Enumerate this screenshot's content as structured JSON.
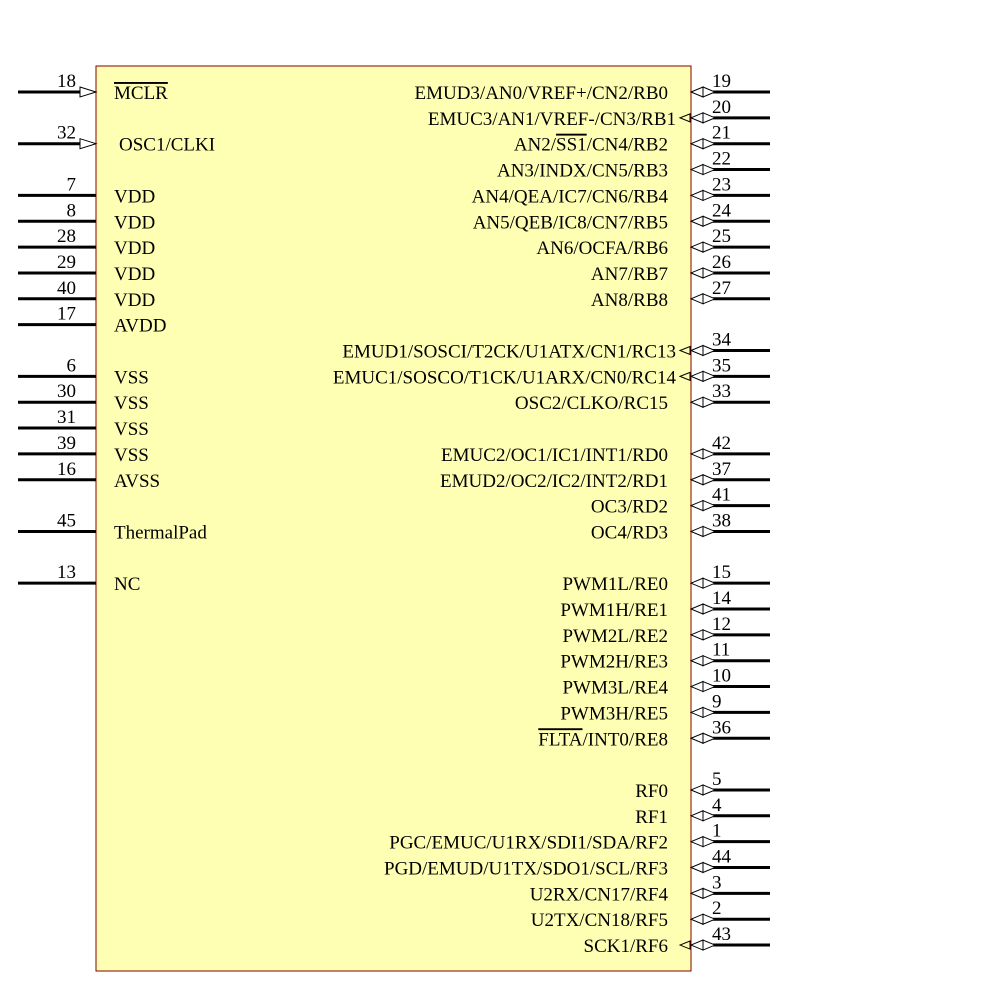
{
  "colors": {
    "body_fill": "#ffffb4",
    "body_border": "#800000",
    "pin": "#000000"
  },
  "left_pins": [
    {
      "row": 0,
      "num": "18",
      "pre": "",
      "over": "MCLR",
      "post": "",
      "type": "input"
    },
    {
      "row": 2,
      "num": "32",
      "pre": "OSC1/CLKI",
      "over": "",
      "post": "",
      "type": "input"
    },
    {
      "row": 4,
      "num": "7",
      "pre": "VDD",
      "over": "",
      "post": "",
      "type": "power"
    },
    {
      "row": 5,
      "num": "8",
      "pre": "VDD",
      "over": "",
      "post": "",
      "type": "power"
    },
    {
      "row": 6,
      "num": "28",
      "pre": "VDD",
      "over": "",
      "post": "",
      "type": "power"
    },
    {
      "row": 7,
      "num": "29",
      "pre": "VDD",
      "over": "",
      "post": "",
      "type": "power"
    },
    {
      "row": 8,
      "num": "40",
      "pre": "VDD",
      "over": "",
      "post": "",
      "type": "power"
    },
    {
      "row": 9,
      "num": "17",
      "pre": "AVDD",
      "over": "",
      "post": "",
      "type": "power"
    },
    {
      "row": 11,
      "num": "6",
      "pre": "VSS",
      "over": "",
      "post": "",
      "type": "power"
    },
    {
      "row": 12,
      "num": "30",
      "pre": "VSS",
      "over": "",
      "post": "",
      "type": "power"
    },
    {
      "row": 13,
      "num": "31",
      "pre": "VSS",
      "over": "",
      "post": "",
      "type": "power"
    },
    {
      "row": 14,
      "num": "39",
      "pre": "VSS",
      "over": "",
      "post": "",
      "type": "power"
    },
    {
      "row": 15,
      "num": "16",
      "pre": "AVSS",
      "over": "",
      "post": "",
      "type": "power"
    },
    {
      "row": 17,
      "num": "45",
      "pre": "ThermalPad",
      "over": "",
      "post": "",
      "type": "power"
    },
    {
      "row": 19,
      "num": "13",
      "pre": "NC",
      "over": "",
      "post": "",
      "type": "power"
    }
  ],
  "right_pins": [
    {
      "row": 0,
      "num": "19",
      "pre": "EMUD3/AN0/VREF+/CN2/RB0",
      "over": "",
      "post": "",
      "out": false
    },
    {
      "row": 1,
      "num": "20",
      "pre": "EMUC3/AN1/VREF-/CN3/RB1",
      "over": "",
      "post": "",
      "out": true
    },
    {
      "row": 2,
      "num": "21",
      "pre": "AN2/",
      "over": "SS1",
      "post": "/CN4/RB2",
      "out": false
    },
    {
      "row": 3,
      "num": "22",
      "pre": "AN3/INDX/CN5/RB3",
      "over": "",
      "post": "",
      "out": false
    },
    {
      "row": 4,
      "num": "23",
      "pre": "AN4/QEA/IC7/CN6/RB4",
      "over": "",
      "post": "",
      "out": false
    },
    {
      "row": 5,
      "num": "24",
      "pre": "AN5/QEB/IC8/CN7/RB5",
      "over": "",
      "post": "",
      "out": false
    },
    {
      "row": 6,
      "num": "25",
      "pre": "AN6/OCFA/RB6",
      "over": "",
      "post": "",
      "out": false
    },
    {
      "row": 7,
      "num": "26",
      "pre": "AN7/RB7",
      "over": "",
      "post": "",
      "out": false
    },
    {
      "row": 8,
      "num": "27",
      "pre": "AN8/RB8",
      "over": "",
      "post": "",
      "out": false
    },
    {
      "row": 10,
      "num": "34",
      "pre": "EMUD1/SOSCI/T2CK/U1ATX/CN1/RC13",
      "over": "",
      "post": "",
      "out": true
    },
    {
      "row": 11,
      "num": "35",
      "pre": "EMUC1/SOSCO/T1CK/U1ARX/CN0/RC14",
      "over": "",
      "post": "",
      "out": true
    },
    {
      "row": 12,
      "num": "33",
      "pre": "OSC2/CLKO/RC15",
      "over": "",
      "post": "",
      "out": false
    },
    {
      "row": 14,
      "num": "42",
      "pre": "EMUC2/OC1/IC1/INT1/RD0",
      "over": "",
      "post": "",
      "out": false
    },
    {
      "row": 15,
      "num": "37",
      "pre": "EMUD2/OC2/IC2/INT2/RD1",
      "over": "",
      "post": "",
      "out": false
    },
    {
      "row": 16,
      "num": "41",
      "pre": "OC3/RD2",
      "over": "",
      "post": "",
      "out": false
    },
    {
      "row": 17,
      "num": "38",
      "pre": "OC4/RD3",
      "over": "",
      "post": "",
      "out": false
    },
    {
      "row": 19,
      "num": "15",
      "pre": "PWM1L/RE0",
      "over": "",
      "post": "",
      "out": false
    },
    {
      "row": 20,
      "num": "14",
      "pre": "PWM1H/RE1",
      "over": "",
      "post": "",
      "out": false
    },
    {
      "row": 21,
      "num": "12",
      "pre": "PWM2L/RE2",
      "over": "",
      "post": "",
      "out": false
    },
    {
      "row": 22,
      "num": "11",
      "pre": "PWM2H/RE3",
      "over": "",
      "post": "",
      "out": false
    },
    {
      "row": 23,
      "num": "10",
      "pre": "PWM3L/RE4",
      "over": "",
      "post": "",
      "out": false
    },
    {
      "row": 24,
      "num": "9",
      "pre": "PWM3H/RE5",
      "over": "",
      "post": "",
      "out": false
    },
    {
      "row": 25,
      "num": "36",
      "pre": "",
      "over": "FLTA",
      "post": "/INT0/RE8",
      "out": false
    },
    {
      "row": 27,
      "num": "5",
      "pre": "RF0",
      "over": "",
      "post": "",
      "out": false
    },
    {
      "row": 28,
      "num": "4",
      "pre": "RF1",
      "over": "",
      "post": "",
      "out": false
    },
    {
      "row": 29,
      "num": "1",
      "pre": "PGC/EMUC/U1RX/SDI1/SDA/RF2",
      "over": "",
      "post": "",
      "out": false
    },
    {
      "row": 30,
      "num": "44",
      "pre": "PGD/EMUD/U1TX/SDO1/SCL/RF3",
      "over": "",
      "post": "",
      "out": false
    },
    {
      "row": 31,
      "num": "3",
      "pre": "U2RX/CN17/RF4",
      "over": "",
      "post": "",
      "out": false
    },
    {
      "row": 32,
      "num": "2",
      "pre": "U2TX/CN18/RF5",
      "over": "",
      "post": "",
      "out": false
    },
    {
      "row": 33,
      "num": "43",
      "pre": "SCK1/RF6",
      "over": "",
      "post": "",
      "out": true
    }
  ]
}
